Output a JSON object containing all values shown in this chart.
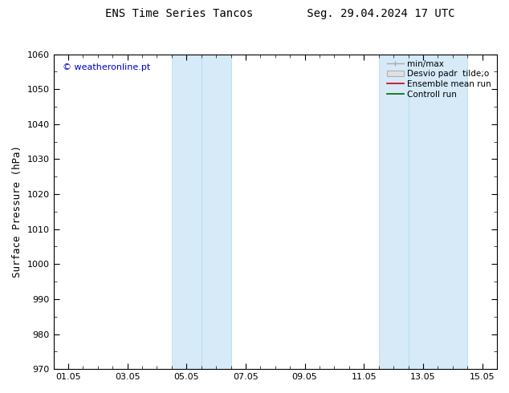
{
  "title_left": "ENS Time Series Tancos",
  "title_right": "Seg. 29.04.2024 17 UTC",
  "ylabel": "Surface Pressure (hPa)",
  "ylim": [
    970,
    1060
  ],
  "yticks": [
    970,
    980,
    990,
    1000,
    1010,
    1020,
    1030,
    1040,
    1050,
    1060
  ],
  "xtick_labels": [
    "01.05",
    "03.05",
    "05.05",
    "07.05",
    "09.05",
    "11.05",
    "13.05",
    "15.05"
  ],
  "xtick_positions": [
    0,
    2,
    4,
    6,
    8,
    10,
    12,
    14
  ],
  "xlim": [
    -0.5,
    14.5
  ],
  "shaded_regions": [
    {
      "x_start": 3.5,
      "x_end": 4.5
    },
    {
      "x_start": 4.5,
      "x_end": 5.5
    },
    {
      "x_start": 10.5,
      "x_end": 11.5
    },
    {
      "x_start": 11.5,
      "x_end": 13.5
    }
  ],
  "shaded_color": "#d6eaf8",
  "shaded_edge_color": "#aed6f1",
  "watermark_text": "© weatheronline.pt",
  "watermark_color": "#0000cc",
  "background_color": "#ffffff",
  "title_fontsize": 10,
  "axis_label_fontsize": 9,
  "tick_fontsize": 8,
  "legend_fontsize": 7.5
}
